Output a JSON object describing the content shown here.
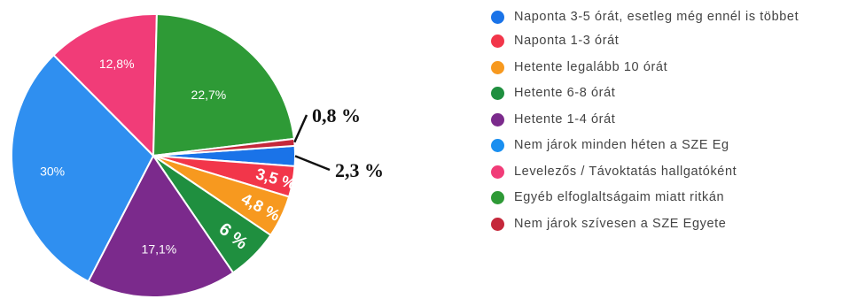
{
  "chart_data": {
    "type": "pie",
    "title": "",
    "slices": [
      {
        "label": "Naponta 3-5 órát, esetleg még ennél is többet",
        "value": 2.3,
        "display": "2,3 %",
        "color": "#1a73e8"
      },
      {
        "label": "Naponta 1-3 órát",
        "value": 3.5,
        "display": "3,5 %",
        "color": "#f2364a"
      },
      {
        "label": "Hetente legalább 10 órát",
        "value": 4.8,
        "display": "4,8 %",
        "color": "#f7991f"
      },
      {
        "label": "Hetente 6-8 órát",
        "value": 6,
        "display": "6 %",
        "color": "#1f8f3f"
      },
      {
        "label": "Hetente 1-4 órát",
        "value": 17.1,
        "display": "17,1%",
        "color": "#7b2a8c"
      },
      {
        "label": "Nem járok minden héten a SZE Eg",
        "value": 30,
        "display": "30%",
        "color": "#2f8ff0"
      },
      {
        "label": "Levelezős / Távoktatás hallgatóként",
        "value": 12.8,
        "display": "12,8%",
        "color": "#f13c78"
      },
      {
        "label": "Egyéb elfoglaltságaim miatt ritkán",
        "value": 22.7,
        "display": "22,7%",
        "color": "#2e9a36"
      },
      {
        "label": "Nem járok szívesen a SZE Egyete",
        "value": 0.8,
        "display": "0,8 %",
        "color": "#c5283b"
      }
    ],
    "legend_placement": "right"
  },
  "legend": [
    {
      "text": "Naponta 3-5 órát, esetleg még ennél is többet",
      "color": "#1a73e8"
    },
    {
      "text": "Naponta 1-3 órát",
      "color": "#f2364a"
    },
    {
      "text": "Hetente legalább 10 órát",
      "color": "#f7991f"
    },
    {
      "text": "Hetente 6-8 órát",
      "color": "#1f8f3f"
    },
    {
      "text": "Hetente 1-4 órát",
      "color": "#7b2a8c"
    },
    {
      "text": "Nem járok minden héten a SZE Eg",
      "color": "#1a8ff0"
    },
    {
      "text": "Levelezős / Távoktatás hallgatóként",
      "color": "#f13c78"
    },
    {
      "text": "Egyéb elfoglaltságaim miatt ritkán",
      "color": "#2e9a36"
    },
    {
      "text": "Nem járok szívesen a SZE Egyete",
      "color": "#c5283b"
    }
  ]
}
